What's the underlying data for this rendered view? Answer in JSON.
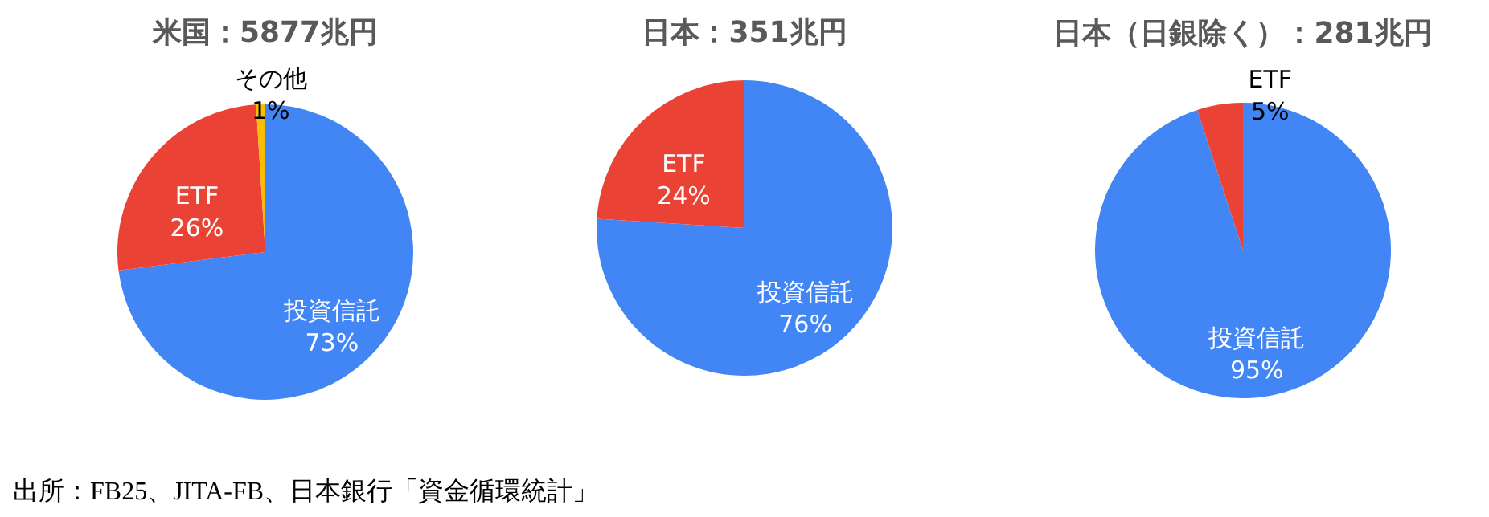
{
  "chart_data": [
    {
      "type": "pie",
      "title": "米国：5877兆円",
      "categories": [
        "投資信託",
        "ETF",
        "その他"
      ],
      "values": [
        73,
        26,
        1
      ],
      "colors": [
        "#4285f4",
        "#ea4335",
        "#fbbc04"
      ],
      "value_labels": [
        "73%",
        "26%",
        "1%"
      ],
      "annotations": [
        "出所：FB25、JITA-FB、日本銀行「資金循環統計」"
      ]
    },
    {
      "type": "pie",
      "title": "日本：351兆円",
      "categories": [
        "投資信託",
        "ETF"
      ],
      "values": [
        76,
        24
      ],
      "colors": [
        "#4285f4",
        "#ea4335"
      ],
      "value_labels": [
        "76%",
        "24%"
      ]
    },
    {
      "type": "pie",
      "title": "日本（日銀除く）：281兆円",
      "categories": [
        "投資信託",
        "ETF"
      ],
      "values": [
        95,
        5
      ],
      "colors": [
        "#4285f4",
        "#ea4335"
      ],
      "value_labels": [
        "95%",
        "5%"
      ]
    }
  ]
}
